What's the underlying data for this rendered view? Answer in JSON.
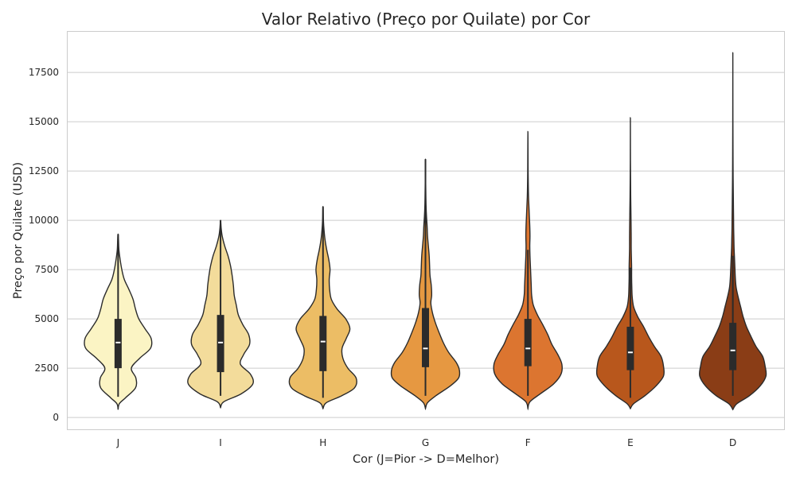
{
  "chart_data": {
    "type": "violin",
    "title": "Valor Relativo (Preço por Quilate) por Cor",
    "xlabel": "Cor (J=Pior -> D=Melhor)",
    "ylabel": "Preço por Quilate (USD)",
    "ylim": [
      -600,
      19600
    ],
    "yticks": [
      0,
      2500,
      5000,
      7500,
      10000,
      12500,
      15000,
      17500
    ],
    "ytick_labels": [
      "0",
      "2500",
      "5000",
      "7500",
      "10000",
      "12500",
      "15000",
      "17500"
    ],
    "grid": true,
    "categories": [
      "J",
      "I",
      "H",
      "G",
      "F",
      "E",
      "D"
    ],
    "colors": [
      "#fbf4c4",
      "#f3dc9b",
      "#ecbd65",
      "#e69841",
      "#dc7530",
      "#b8571c",
      "#8a3d16"
    ],
    "series": [
      {
        "category": "J",
        "kde_min": 400,
        "kde_max": 9300,
        "whisker_low": 1050,
        "whisker_high": 9300,
        "q1": 2500,
        "median": 3800,
        "q3": 5000,
        "profile": [
          [
            400,
            0
          ],
          [
            700,
            0.03
          ],
          [
            1000,
            0.18
          ],
          [
            1500,
            0.42
          ],
          [
            2000,
            0.43
          ],
          [
            2500,
            0.32
          ],
          [
            3000,
            0.52
          ],
          [
            3500,
            0.78
          ],
          [
            4000,
            0.8
          ],
          [
            4500,
            0.65
          ],
          [
            5000,
            0.5
          ],
          [
            5500,
            0.42
          ],
          [
            6000,
            0.36
          ],
          [
            6500,
            0.26
          ],
          [
            7000,
            0.15
          ],
          [
            7500,
            0.09
          ],
          [
            8000,
            0.05
          ],
          [
            8500,
            0.02
          ],
          [
            9000,
            0.01
          ],
          [
            9300,
            0
          ]
        ]
      },
      {
        "category": "I",
        "kde_min": 500,
        "kde_max": 10000,
        "whisker_low": 1100,
        "whisker_high": 10000,
        "q1": 2300,
        "median": 3800,
        "q3": 5200,
        "profile": [
          [
            500,
            0
          ],
          [
            800,
            0.08
          ],
          [
            1200,
            0.5
          ],
          [
            1700,
            0.78
          ],
          [
            2200,
            0.72
          ],
          [
            2700,
            0.48
          ],
          [
            3200,
            0.56
          ],
          [
            3700,
            0.7
          ],
          [
            4200,
            0.68
          ],
          [
            4700,
            0.54
          ],
          [
            5200,
            0.43
          ],
          [
            5700,
            0.38
          ],
          [
            6200,
            0.33
          ],
          [
            6700,
            0.31
          ],
          [
            7200,
            0.28
          ],
          [
            7700,
            0.24
          ],
          [
            8200,
            0.18
          ],
          [
            8700,
            0.1
          ],
          [
            9200,
            0.04
          ],
          [
            9600,
            0.015
          ],
          [
            10000,
            0
          ]
        ]
      },
      {
        "category": "H",
        "kde_min": 450,
        "kde_max": 10700,
        "whisker_low": 1000,
        "whisker_high": 10700,
        "q1": 2350,
        "median": 3850,
        "q3": 5150,
        "profile": [
          [
            450,
            0
          ],
          [
            750,
            0.08
          ],
          [
            1100,
            0.45
          ],
          [
            1500,
            0.76
          ],
          [
            2000,
            0.8
          ],
          [
            2500,
            0.6
          ],
          [
            3000,
            0.48
          ],
          [
            3500,
            0.46
          ],
          [
            4000,
            0.56
          ],
          [
            4500,
            0.65
          ],
          [
            5000,
            0.55
          ],
          [
            5500,
            0.34
          ],
          [
            6000,
            0.2
          ],
          [
            6500,
            0.16
          ],
          [
            7000,
            0.15
          ],
          [
            7500,
            0.17
          ],
          [
            8000,
            0.14
          ],
          [
            8500,
            0.09
          ],
          [
            9000,
            0.05
          ],
          [
            9500,
            0.025
          ],
          [
            10000,
            0.01
          ],
          [
            10700,
            0
          ]
        ]
      },
      {
        "category": "G",
        "kde_min": 450,
        "kde_max": 13100,
        "whisker_low": 1100,
        "whisker_high": 13100,
        "q1": 2550,
        "median": 3500,
        "q3": 5550,
        "profile": [
          [
            450,
            0
          ],
          [
            750,
            0.05
          ],
          [
            1100,
            0.25
          ],
          [
            1600,
            0.6
          ],
          [
            2000,
            0.8
          ],
          [
            2400,
            0.82
          ],
          [
            2800,
            0.74
          ],
          [
            3300,
            0.56
          ],
          [
            3800,
            0.43
          ],
          [
            4300,
            0.33
          ],
          [
            4800,
            0.24
          ],
          [
            5300,
            0.17
          ],
          [
            5800,
            0.13
          ],
          [
            6200,
            0.15
          ],
          [
            6700,
            0.14
          ],
          [
            7200,
            0.11
          ],
          [
            7700,
            0.1
          ],
          [
            8200,
            0.09
          ],
          [
            8700,
            0.07
          ],
          [
            9200,
            0.05
          ],
          [
            9700,
            0.04
          ],
          [
            10200,
            0.025
          ],
          [
            10700,
            0.015
          ],
          [
            11200,
            0.01
          ],
          [
            12000,
            0.005
          ],
          [
            13100,
            0
          ]
        ]
      },
      {
        "category": "F",
        "kde_min": 450,
        "kde_max": 14500,
        "whisker_low": 1100,
        "whisker_high": 8500,
        "q1": 2600,
        "median": 3500,
        "q3": 5000,
        "profile": [
          [
            450,
            0
          ],
          [
            800,
            0.05
          ],
          [
            1200,
            0.3
          ],
          [
            1700,
            0.62
          ],
          [
            2200,
            0.8
          ],
          [
            2700,
            0.82
          ],
          [
            3200,
            0.72
          ],
          [
            3700,
            0.58
          ],
          [
            4200,
            0.48
          ],
          [
            4700,
            0.36
          ],
          [
            5200,
            0.23
          ],
          [
            5700,
            0.13
          ],
          [
            6200,
            0.09
          ],
          [
            6700,
            0.08
          ],
          [
            7200,
            0.07
          ],
          [
            7700,
            0.06
          ],
          [
            8200,
            0.05
          ],
          [
            8700,
            0.045
          ],
          [
            9200,
            0.05
          ],
          [
            9700,
            0.045
          ],
          [
            10200,
            0.035
          ],
          [
            10700,
            0.025
          ],
          [
            11200,
            0.015
          ],
          [
            11700,
            0.01
          ],
          [
            12500,
            0.005
          ],
          [
            14500,
            0
          ]
        ]
      },
      {
        "category": "E",
        "kde_min": 450,
        "kde_max": 15200,
        "whisker_low": 1000,
        "whisker_high": 7600,
        "q1": 2400,
        "median": 3300,
        "q3": 4600,
        "profile": [
          [
            450,
            0
          ],
          [
            700,
            0.08
          ],
          [
            1100,
            0.35
          ],
          [
            1600,
            0.62
          ],
          [
            2100,
            0.8
          ],
          [
            2600,
            0.8
          ],
          [
            3100,
            0.74
          ],
          [
            3600,
            0.58
          ],
          [
            4100,
            0.44
          ],
          [
            4600,
            0.32
          ],
          [
            5100,
            0.18
          ],
          [
            5600,
            0.08
          ],
          [
            6100,
            0.045
          ],
          [
            6600,
            0.035
          ],
          [
            7100,
            0.03
          ],
          [
            7600,
            0.03
          ],
          [
            8100,
            0.025
          ],
          [
            8600,
            0.02
          ],
          [
            9100,
            0.02
          ],
          [
            9600,
            0.018
          ],
          [
            10100,
            0.015
          ],
          [
            10600,
            0.012
          ],
          [
            11200,
            0.008
          ],
          [
            12000,
            0.005
          ],
          [
            13000,
            0.002
          ],
          [
            15200,
            0
          ]
        ]
      },
      {
        "category": "D",
        "kde_min": 400,
        "kde_max": 18500,
        "whisker_low": 1100,
        "whisker_high": 8200,
        "q1": 2400,
        "median": 3400,
        "q3": 4800,
        "profile": [
          [
            400,
            0
          ],
          [
            700,
            0.1
          ],
          [
            1100,
            0.4
          ],
          [
            1600,
            0.66
          ],
          [
            2100,
            0.8
          ],
          [
            2600,
            0.78
          ],
          [
            3100,
            0.72
          ],
          [
            3600,
            0.56
          ],
          [
            4100,
            0.44
          ],
          [
            4600,
            0.33
          ],
          [
            5100,
            0.25
          ],
          [
            5600,
            0.19
          ],
          [
            6100,
            0.13
          ],
          [
            6600,
            0.08
          ],
          [
            7100,
            0.06
          ],
          [
            7600,
            0.05
          ],
          [
            8100,
            0.04
          ],
          [
            8600,
            0.03
          ],
          [
            9100,
            0.025
          ],
          [
            9600,
            0.02
          ],
          [
            10100,
            0.018
          ],
          [
            10600,
            0.015
          ],
          [
            11200,
            0.012
          ],
          [
            12000,
            0.008
          ],
          [
            13000,
            0.005
          ],
          [
            15000,
            0.002
          ],
          [
            18500,
            0
          ]
        ]
      }
    ]
  }
}
